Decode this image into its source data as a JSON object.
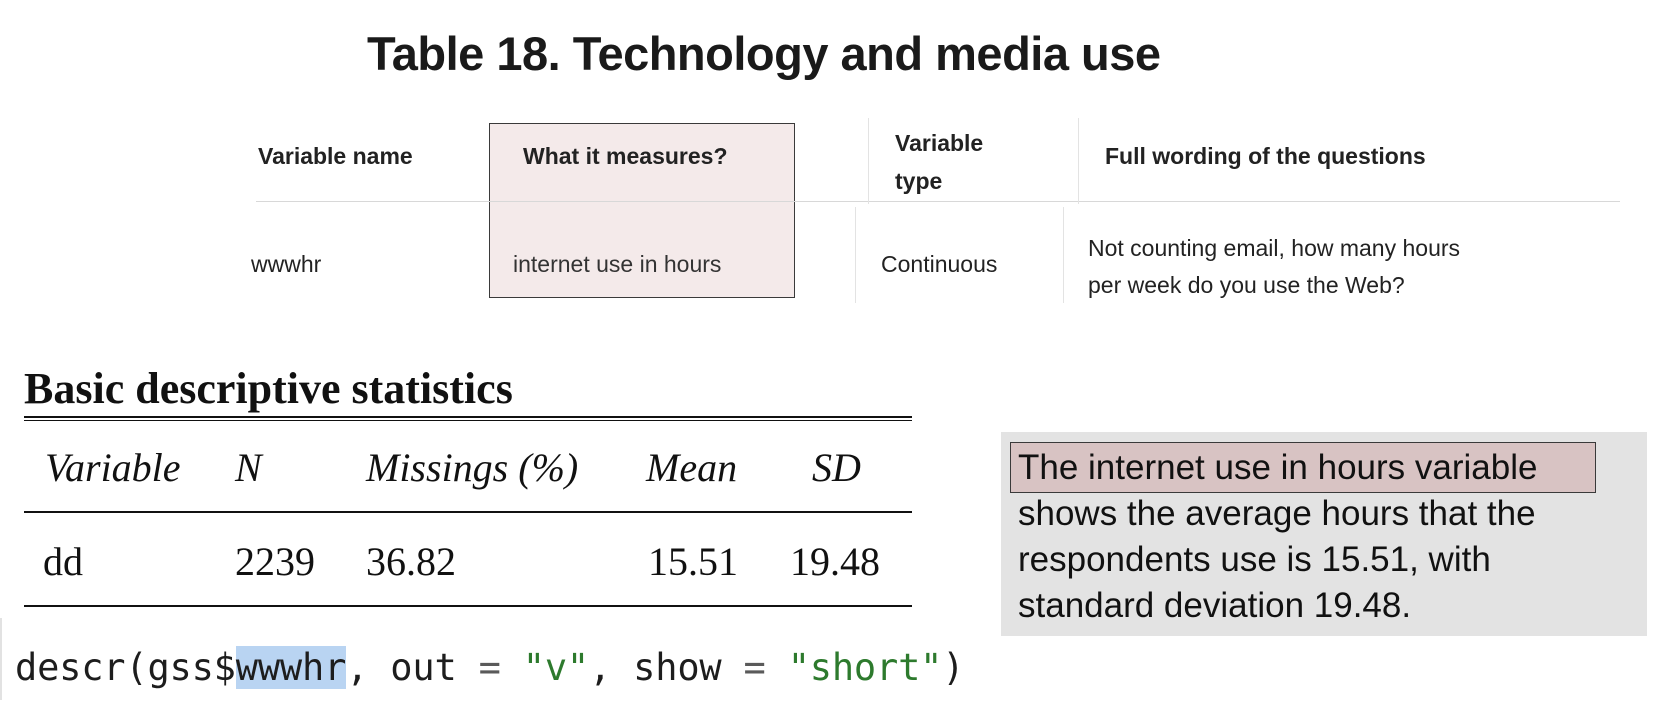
{
  "title": "Table 18. Technology and media use",
  "variable_table": {
    "headers": {
      "name": "Variable name",
      "measure": "What it measures?",
      "type_line1": "Variable",
      "type_line2": "type",
      "full": "Full wording of the questions"
    },
    "row": {
      "name": "wwwhr",
      "measure": "internet use in hours",
      "type": "Continuous",
      "full_line1": "Not counting email, how many hours",
      "full_line2": "per week do you use the Web?"
    }
  },
  "descriptive_stats": {
    "title": "Basic descriptive statistics",
    "headers": {
      "variable": "Variable",
      "n": "N",
      "missings": "Missings (%)",
      "mean": "Mean",
      "sd": "SD"
    },
    "row": {
      "variable": "dd",
      "n": "2239",
      "missings": "36.82",
      "mean": "15.51",
      "sd": "19.48"
    }
  },
  "code": {
    "fn": "descr(gss$",
    "selected": "wwwhr",
    "after_sel": ", out ",
    "eq1": "=",
    "sp1": " ",
    "str1": "\"v\"",
    "mid": ", show ",
    "eq2": "=",
    "sp2": " ",
    "str2": "\"short\"",
    "close": ")"
  },
  "explanation": {
    "line1": "The internet use in hours variable",
    "line2": "shows the average hours that the",
    "line3": "respondents use is 15.51, with",
    "line4": "standard deviation 19.48."
  },
  "colors": {
    "highlight_fill": "#d8c3c3",
    "code_string": "#2d7a2d",
    "code_selection": "#b9d4f2",
    "panel_bg": "#e3e3e3"
  }
}
